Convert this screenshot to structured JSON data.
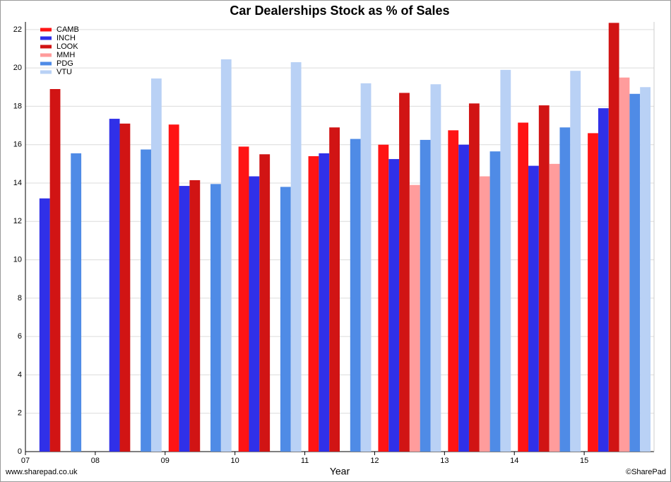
{
  "chart_data": {
    "type": "bar",
    "title": "Car Dealerships Stock as % of Sales",
    "x_label": "Year",
    "source": "www.sharepad.co.uk",
    "credit": "©SharePad",
    "categories": [
      "07",
      "08",
      "09",
      "10",
      "11",
      "12",
      "13",
      "14",
      "15"
    ],
    "series": [
      {
        "name": "CAMB",
        "color": "#ff1414",
        "values": [
          null,
          null,
          17.05,
          15.9,
          15.4,
          16.0,
          16.75,
          17.15,
          16.6
        ]
      },
      {
        "name": "INCH",
        "color": "#3030e8",
        "values": [
          13.2,
          17.35,
          13.85,
          14.35,
          15.55,
          15.25,
          16.0,
          14.9,
          17.9
        ]
      },
      {
        "name": "LOOK",
        "color": "#d11414",
        "values": [
          18.9,
          17.1,
          14.15,
          15.5,
          16.9,
          18.7,
          18.15,
          18.05,
          22.35
        ]
      },
      {
        "name": "MMH",
        "color": "#ff9c9c",
        "values": [
          null,
          null,
          null,
          null,
          null,
          13.9,
          14.35,
          15.0,
          19.5
        ]
      },
      {
        "name": "PDG",
        "color": "#4f8be6",
        "values": [
          15.55,
          15.75,
          13.95,
          13.8,
          16.3,
          16.25,
          15.65,
          16.9,
          18.65
        ]
      },
      {
        "name": "VTU",
        "color": "#b9d1f5",
        "values": [
          null,
          19.45,
          20.45,
          20.3,
          19.2,
          19.15,
          19.9,
          19.85,
          19.0
        ]
      }
    ],
    "ylim": [
      0,
      22.4
    ],
    "yticks": [
      0,
      2,
      4,
      6,
      8,
      10,
      12,
      14,
      16,
      18,
      20,
      22
    ],
    "grid": true,
    "legend": "top-left"
  }
}
